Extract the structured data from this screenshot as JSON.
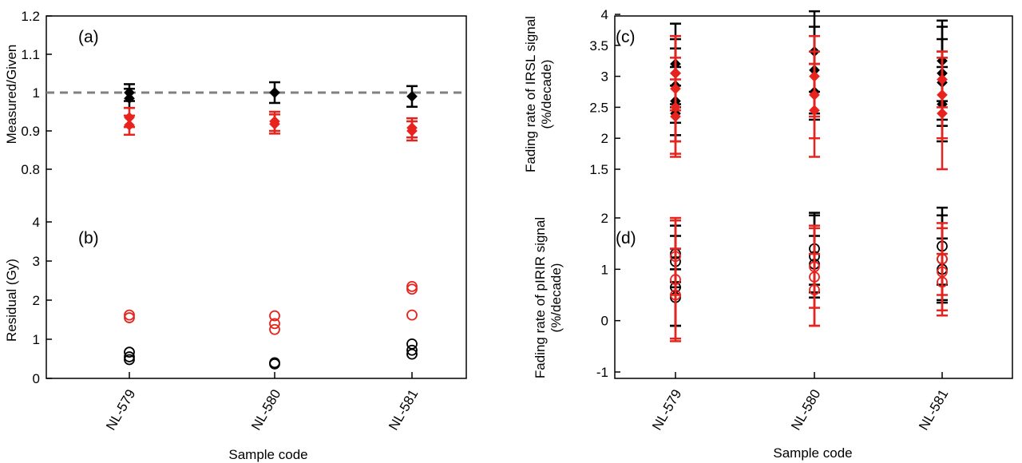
{
  "figure": {
    "panels": [
      {
        "id": "a",
        "tag": "(a)",
        "ylabel": "Measured/Given"
      },
      {
        "id": "b",
        "tag": "(b)",
        "ylabel": "Residual (Gy)"
      },
      {
        "id": "c",
        "tag": "(c)",
        "ylabel_lines": [
          "Fading rate of IRSL signal",
          "(%/decade)"
        ]
      },
      {
        "id": "d",
        "tag": "(d)",
        "ylabel_lines": [
          "Fading rate of pIRIR signal",
          "(%/decade)"
        ]
      }
    ],
    "left_xlabel": "Sample code",
    "right_xlabel": "Sample code"
  },
  "chart_data": [
    {
      "id": "a",
      "type": "scatter",
      "categories": [
        "NL-579",
        "NL-580",
        "NL-581"
      ],
      "ylim": [
        0.7,
        1.2
      ],
      "yticks": [
        0.8,
        0.9,
        1.0,
        1.1,
        1.2
      ],
      "ytick_labels": [
        "0.8",
        "0.9",
        "1",
        "1.1",
        "1.2"
      ],
      "reference_line": 1.0,
      "colors": {
        "black": "#000000",
        "red": "#e8231d",
        "reference": "#808080"
      },
      "series": [
        {
          "color": "black",
          "marker": "diamond",
          "points": [
            {
              "x": "NL-579",
              "y": 1.0,
              "err": 0.022
            },
            {
              "x": "NL-579",
              "y": 0.985,
              "err": 0.025
            },
            {
              "x": "NL-580",
              "y": 1.0,
              "err": 0.027
            },
            {
              "x": "NL-581",
              "y": 0.99,
              "err": 0.027
            }
          ]
        },
        {
          "color": "red",
          "marker": "diamond",
          "points": [
            {
              "x": "NL-579",
              "y": 0.935,
              "err": 0.025
            },
            {
              "x": "NL-579",
              "y": 0.915,
              "err": 0.025
            },
            {
              "x": "NL-580",
              "y": 0.925,
              "err": 0.025
            },
            {
              "x": "NL-580",
              "y": 0.918,
              "err": 0.025
            },
            {
              "x": "NL-581",
              "y": 0.908,
              "err": 0.025
            },
            {
              "x": "NL-581",
              "y": 0.9,
              "err": 0.025
            }
          ]
        }
      ]
    },
    {
      "id": "b",
      "type": "scatter",
      "categories": [
        "NL-579",
        "NL-580",
        "NL-581"
      ],
      "ylim": [
        0,
        4
      ],
      "yticks": [
        0,
        1,
        2,
        3,
        4
      ],
      "ytick_labels": [
        "0",
        "1",
        "2",
        "3",
        "4"
      ],
      "colors": {
        "black": "#000000",
        "red": "#e8231d"
      },
      "series": [
        {
          "color": "black",
          "marker": "circle",
          "points": [
            {
              "x": "NL-579",
              "y": 0.67
            },
            {
              "x": "NL-579",
              "y": 0.55
            },
            {
              "x": "NL-579",
              "y": 0.48
            },
            {
              "x": "NL-580",
              "y": 0.4
            },
            {
              "x": "NL-580",
              "y": 0.37
            },
            {
              "x": "NL-581",
              "y": 0.88
            },
            {
              "x": "NL-581",
              "y": 0.72
            },
            {
              "x": "NL-581",
              "y": 0.62
            }
          ]
        },
        {
          "color": "red",
          "marker": "circle",
          "points": [
            {
              "x": "NL-579",
              "y": 1.62
            },
            {
              "x": "NL-579",
              "y": 1.55
            },
            {
              "x": "NL-580",
              "y": 1.6
            },
            {
              "x": "NL-580",
              "y": 1.4
            },
            {
              "x": "NL-580",
              "y": 1.25
            },
            {
              "x": "NL-581",
              "y": 2.35
            },
            {
              "x": "NL-581",
              "y": 2.28
            },
            {
              "x": "NL-581",
              "y": 1.62
            }
          ]
        }
      ]
    },
    {
      "id": "c",
      "type": "scatter",
      "categories": [
        "NL-579",
        "NL-580",
        "NL-581"
      ],
      "ylim": [
        1.5,
        4
      ],
      "yticks": [
        1.5,
        2,
        2.5,
        3,
        3.5,
        4
      ],
      "ytick_labels": [
        "1.5",
        "2",
        "2.5",
        "3",
        "3.5",
        "4"
      ],
      "colors": {
        "black": "#000000",
        "red": "#e8231d"
      },
      "series": [
        {
          "color": "black",
          "marker": "diamond",
          "points": [
            {
              "x": "NL-579",
              "y": 3.2,
              "err": 0.65
            },
            {
              "x": "NL-579",
              "y": 3.05,
              "err": 0.55
            },
            {
              "x": "NL-579",
              "y": 2.85,
              "err": 0.6
            },
            {
              "x": "NL-579",
              "y": 2.6,
              "err": 0.55
            },
            {
              "x": "NL-579",
              "y": 2.4,
              "err": 0.45
            },
            {
              "x": "NL-580",
              "y": 3.4,
              "err": 0.65
            },
            {
              "x": "NL-580",
              "y": 3.1,
              "err": 0.7
            },
            {
              "x": "NL-580",
              "y": 2.75,
              "err": 0.45
            },
            {
              "x": "NL-581",
              "y": 3.25,
              "err": 0.65
            },
            {
              "x": "NL-581",
              "y": 3.05,
              "err": 0.75
            },
            {
              "x": "NL-581",
              "y": 2.9,
              "err": 0.7
            },
            {
              "x": "NL-581",
              "y": 2.55,
              "err": 0.6
            }
          ]
        },
        {
          "color": "red",
          "marker": "diamond",
          "points": [
            {
              "x": "NL-579",
              "y": 3.05,
              "err": 0.6
            },
            {
              "x": "NL-579",
              "y": 2.8,
              "err": 0.85
            },
            {
              "x": "NL-579",
              "y": 2.5,
              "err": 0.8
            },
            {
              "x": "NL-579",
              "y": 2.35,
              "err": 0.6
            },
            {
              "x": "NL-580",
              "y": 3.0,
              "err": 0.65
            },
            {
              "x": "NL-580",
              "y": 2.7,
              "err": 0.7
            },
            {
              "x": "NL-580",
              "y": 2.45,
              "err": 0.75
            },
            {
              "x": "NL-581",
              "y": 2.95,
              "err": 0.45
            },
            {
              "x": "NL-581",
              "y": 2.7,
              "err": 0.7
            },
            {
              "x": "NL-581",
              "y": 2.4,
              "err": 0.9
            }
          ]
        }
      ]
    },
    {
      "id": "d",
      "type": "scatter",
      "categories": [
        "NL-579",
        "NL-580",
        "NL-581"
      ],
      "ylim": [
        -1,
        2.5
      ],
      "yticks": [
        -1,
        0,
        1,
        2
      ],
      "ytick_labels": [
        "-1",
        "0",
        "1",
        "2"
      ],
      "colors": {
        "black": "#000000",
        "red": "#e8231d"
      },
      "series": [
        {
          "color": "black",
          "marker": "circle",
          "points": [
            {
              "x": "NL-579",
              "y": 1.3,
              "err": 0.55
            },
            {
              "x": "NL-579",
              "y": 1.15,
              "err": 0.5
            },
            {
              "x": "NL-579",
              "y": 0.65,
              "err": 0.75
            },
            {
              "x": "NL-579",
              "y": 0.45,
              "err": 0.55
            },
            {
              "x": "NL-580",
              "y": 1.4,
              "err": 0.7
            },
            {
              "x": "NL-580",
              "y": 1.25,
              "err": 0.8
            },
            {
              "x": "NL-580",
              "y": 1.1,
              "err": 0.55
            },
            {
              "x": "NL-581",
              "y": 1.45,
              "err": 0.75
            },
            {
              "x": "NL-581",
              "y": 1.2,
              "err": 0.85
            },
            {
              "x": "NL-581",
              "y": 1.0,
              "err": 0.6
            }
          ]
        },
        {
          "color": "red",
          "marker": "circle",
          "points": [
            {
              "x": "NL-579",
              "y": 1.25,
              "err": 0.75
            },
            {
              "x": "NL-579",
              "y": 0.8,
              "err": 1.15
            },
            {
              "x": "NL-579",
              "y": 0.5,
              "err": 0.9
            },
            {
              "x": "NL-580",
              "y": 1.05,
              "err": 0.8
            },
            {
              "x": "NL-580",
              "y": 0.85,
              "err": 0.95
            },
            {
              "x": "NL-580",
              "y": 0.6,
              "err": 0.7
            },
            {
              "x": "NL-581",
              "y": 1.2,
              "err": 0.7
            },
            {
              "x": "NL-581",
              "y": 0.95,
              "err": 0.85
            },
            {
              "x": "NL-581",
              "y": 0.75,
              "err": 0.55
            }
          ]
        }
      ]
    }
  ]
}
